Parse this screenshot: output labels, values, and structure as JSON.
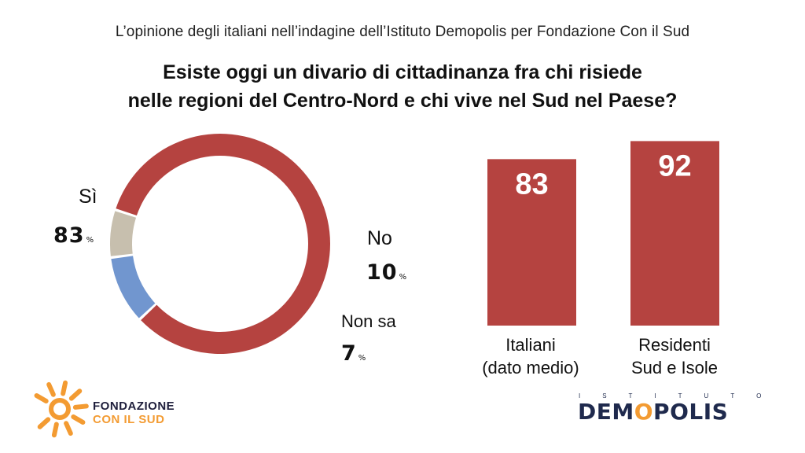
{
  "header": {
    "subtitle": "L’opinione degli italiani nell’indagine dell’Istituto Demopolis per Fondazione Con il Sud",
    "question_line1": "Esiste oggi un divario di cittadinanza fra chi risiede",
    "question_line2": "nelle regioni del Centro-Nord e chi vive nel Sud nel Paese?"
  },
  "chart_data": [
    {
      "type": "pie",
      "style": "donut",
      "categories": [
        "Sì",
        "No",
        "Non sa"
      ],
      "values": [
        83,
        10,
        7
      ],
      "unit": "%",
      "colors": [
        "#b54340",
        "#7196cf",
        "#c7bfae"
      ]
    },
    {
      "type": "bar",
      "categories": [
        "Italiani (dato medio)",
        "Residenti Sud e Isole"
      ],
      "category_lines": [
        [
          "Italiani",
          "(dato medio)"
        ],
        [
          "Residenti",
          "Sud e Isole"
        ]
      ],
      "values": [
        83,
        92
      ],
      "colors": [
        "#b54340"
      ],
      "ylim": [
        0,
        100
      ]
    }
  ],
  "logos": {
    "fondazione_line1": "FONDAZIONE",
    "fondazione_line2": "CON IL SUD",
    "demopolis_top": "ISTITUTO",
    "demopolis_main_a": "DEM",
    "demopolis_main_o": "O",
    "demopolis_main_b": "POLIS"
  }
}
